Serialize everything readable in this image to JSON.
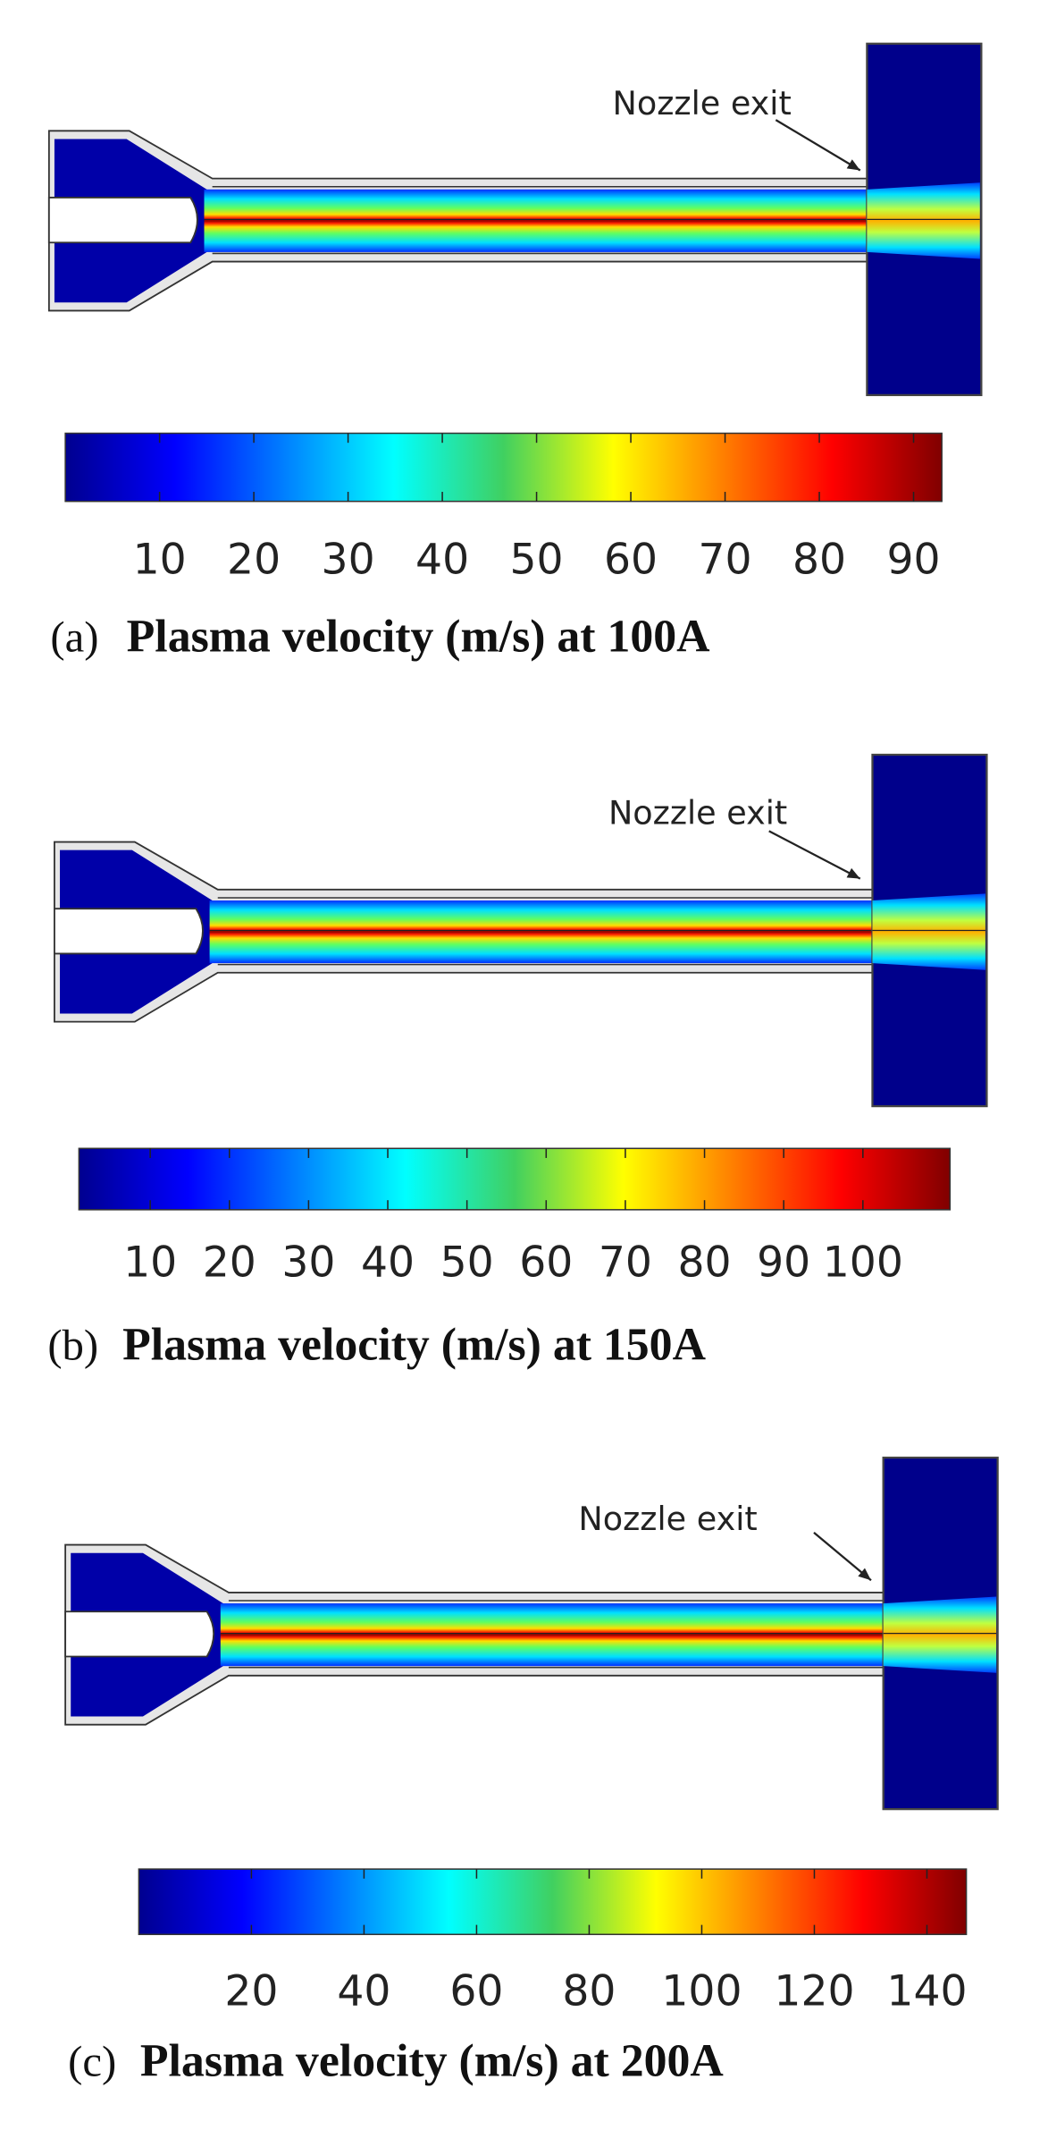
{
  "panels": [
    {
      "label": "(a)",
      "title": "Plasma velocity (m/s) at 100A",
      "annotation": "Nozzle exit",
      "colorbar": {
        "range": [
          0,
          93
        ],
        "ticks": [
          10,
          20,
          30,
          40,
          50,
          60,
          70,
          80,
          90
        ]
      }
    },
    {
      "label": "(b)",
      "title": "Plasma velocity (m/s) at 150A",
      "annotation": "Nozzle exit",
      "colorbar": {
        "range": [
          1,
          111
        ],
        "ticks": [
          10,
          20,
          30,
          40,
          50,
          60,
          70,
          80,
          90,
          100
        ]
      }
    },
    {
      "label": "(c)",
      "title": "Plasma velocity (m/s) at 200A",
      "annotation": "Nozzle exit",
      "colorbar": {
        "range": [
          0,
          147
        ],
        "ticks": [
          20,
          40,
          60,
          80,
          100,
          120,
          140
        ]
      }
    }
  ]
}
